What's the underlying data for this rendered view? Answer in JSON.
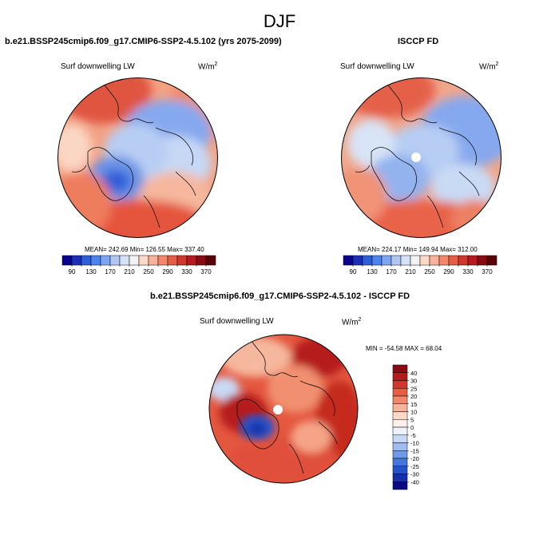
{
  "figure": {
    "title": "DJF"
  },
  "panels": [
    {
      "title": "b.e21.BSSP245cmip6.f09_g17.CMIP6-SSP2-4.5.102 (yrs 2075-2099)",
      "variable": "Surf downwelling LW",
      "units_base": "W/m",
      "units_exp": "2",
      "stats": "MEAN= 242.69  Min= 126.55  Max= 337.40"
    },
    {
      "title": "ISCCP FD",
      "variable": "Surf downwelling LW",
      "units_base": "W/m",
      "units_exp": "2",
      "stats": "MEAN= 224.17  Min= 149.94  Max= 312.00"
    },
    {
      "title": "b.e21.BSSP245cmip6.f09_g17.CMIP6-SSP2-4.5.102 - ISCCP FD",
      "variable": "Surf downwelling LW",
      "units_base": "W/m",
      "units_exp": "2",
      "stats": "MIN = -54.58 MAX =  68.04"
    }
  ],
  "chart_data": [
    {
      "type": "heatmap",
      "projection": "north polar stereographic",
      "title": "b.e21.BSSP245cmip6.f09_g17.CMIP6-SSP2-4.5.102 (yrs 2075-2099)",
      "variable": "Surf downwelling LW",
      "units": "W/m2",
      "mean": 242.69,
      "min": 126.55,
      "max": 337.4,
      "colorbar": {
        "orientation": "horizontal",
        "levels": [
          90,
          110,
          130,
          150,
          170,
          190,
          210,
          230,
          250,
          270,
          290,
          310,
          330,
          350,
          370
        ],
        "tick_labels": [
          "90",
          "130",
          "170",
          "210",
          "250",
          "290",
          "330",
          "370"
        ],
        "colors": [
          "#08048f",
          "#1c2fb9",
          "#2e5fd8",
          "#4c84ea",
          "#7ea5f0",
          "#afc6f3",
          "#d6e2f6",
          "#f2f2f2",
          "#fcd9c7",
          "#f7b399",
          "#f2876a",
          "#e65c45",
          "#d2372d",
          "#b51a1f",
          "#8a0b13",
          "#5a0008"
        ]
      }
    },
    {
      "type": "heatmap",
      "projection": "north polar stereographic",
      "title": "ISCCP FD",
      "variable": "Surf downwelling LW",
      "units": "W/m2",
      "mean": 224.17,
      "min": 149.94,
      "max": 312.0,
      "colorbar": {
        "orientation": "horizontal",
        "levels": [
          90,
          110,
          130,
          150,
          170,
          190,
          210,
          230,
          250,
          270,
          290,
          310,
          330,
          350,
          370
        ],
        "tick_labels": [
          "90",
          "130",
          "170",
          "210",
          "250",
          "290",
          "330",
          "370"
        ],
        "colors": [
          "#08048f",
          "#1c2fb9",
          "#2e5fd8",
          "#4c84ea",
          "#7ea5f0",
          "#afc6f3",
          "#d6e2f6",
          "#f2f2f2",
          "#fcd9c7",
          "#f7b399",
          "#f2876a",
          "#e65c45",
          "#d2372d",
          "#b51a1f",
          "#8a0b13",
          "#5a0008"
        ]
      }
    },
    {
      "type": "heatmap",
      "projection": "north polar stereographic",
      "title": "b.e21.BSSP245cmip6.f09_g17.CMIP6-SSP2-4.5.102 - ISCCP FD",
      "variable": "Surf downwelling LW",
      "units": "W/m2",
      "min": -54.58,
      "max": 68.04,
      "colorbar": {
        "orientation": "vertical",
        "tick_labels": [
          "40",
          "30",
          "25",
          "20",
          "15",
          "10",
          "5",
          "0",
          "-5",
          "-10",
          "-15",
          "-20",
          "-25",
          "-30",
          "-40"
        ],
        "colors": [
          "#8a0b13",
          "#b51a1f",
          "#d2372d",
          "#e65c45",
          "#f2876a",
          "#f7b399",
          "#fcd9c7",
          "#fdf0ea",
          "#eef3fb",
          "#c7d9f5",
          "#9fbdf0",
          "#6f9ae8",
          "#4476dd",
          "#2452c8",
          "#1530a8",
          "#0a0a82"
        ]
      }
    }
  ]
}
